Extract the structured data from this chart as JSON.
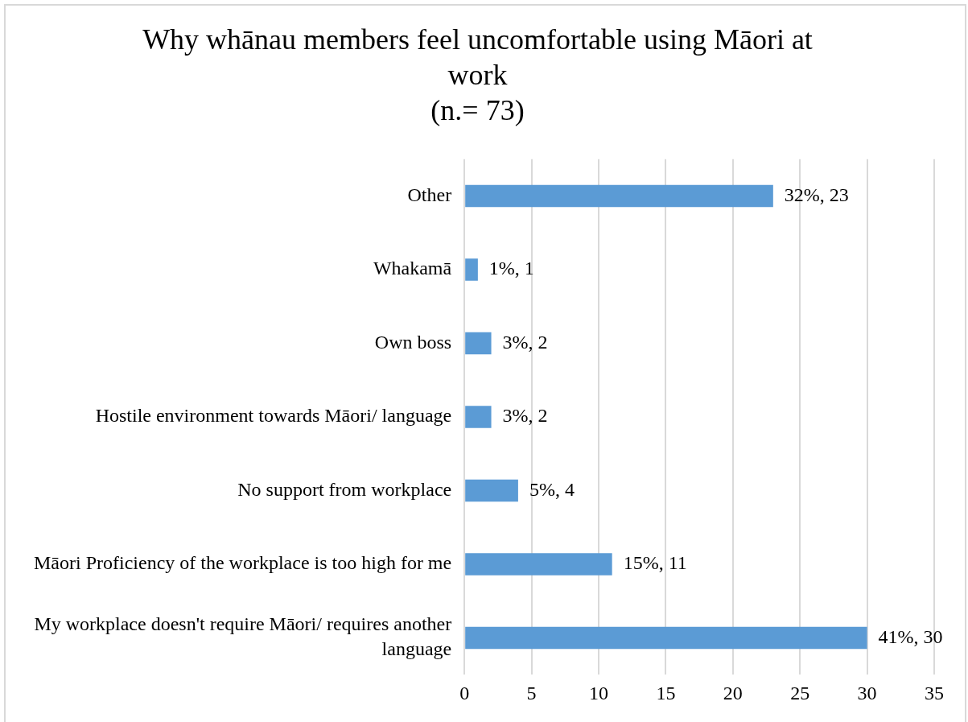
{
  "chart_data": {
    "type": "bar",
    "orientation": "horizontal",
    "title": "Why whānau members feel uncomfortable using Māori at work",
    "subtitle": "(n.= 73)",
    "categories": [
      "Other",
      "Whakamā",
      "Own boss",
      "Hostile environment towards Māori/ language",
      "No support from workplace",
      "Māori Proficiency of the workplace is too high for me",
      "My workplace doesn't require Māori/ requires another language"
    ],
    "values": [
      23,
      1,
      2,
      2,
      4,
      11,
      30
    ],
    "color": "#5b9bd5",
    "value_labels": [
      "32%, 23",
      "1%, 1",
      "3%, 2",
      "3%, 2",
      "5%, 4",
      "15%, 11",
      "41%, 30"
    ],
    "xlim": [
      0,
      35
    ],
    "xticks": [
      0,
      5,
      10,
      15,
      20,
      25,
      30,
      35
    ],
    "grid": "x"
  }
}
